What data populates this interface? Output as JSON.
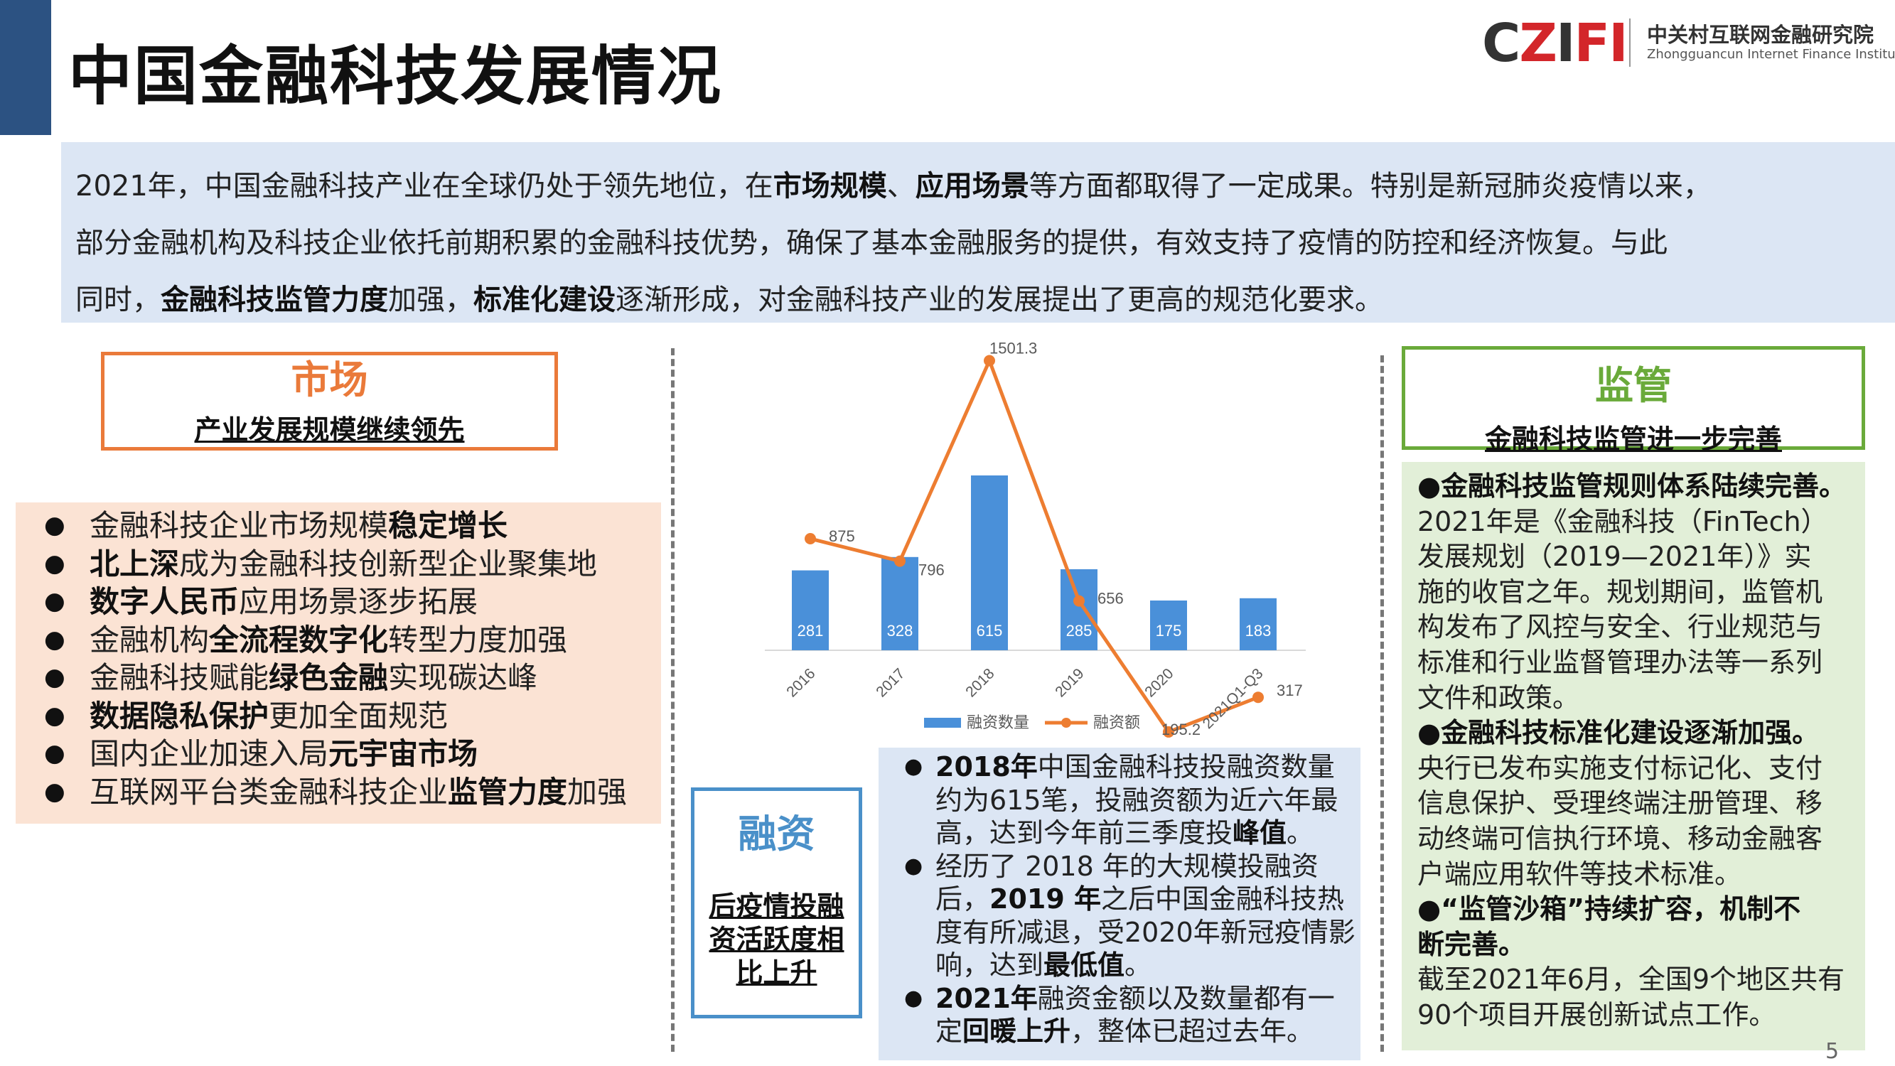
{
  "header": {
    "title": "中国金融科技发展情况",
    "logo_mark_dark1": "C",
    "logo_mark_red1": "Z",
    "logo_mark_dark2": "I",
    "logo_mark_red2": "FI",
    "logo_cn": "中关村互联网金融研究院",
    "logo_en": "Zhongguancun Internet Finance Institute"
  },
  "intro": {
    "l1a": "2021年，中国金融科技产业在全球仍处于领先地位，在",
    "l1b": "市场规模",
    "l1c": "、",
    "l1d": "应用场景",
    "l1e": "等方面都取得了一定成果。特别是新冠肺炎疫情以来，",
    "l2": "部分金融机构及科技企业依托前期积累的金融科技优势，确保了基本金融服务的提供，有效支持了疫情的防控和经济恢复。与此",
    "l3a": "同时，",
    "l3b": "金融科技监管力度",
    "l3c": "加强，",
    "l3d": "标准化建设",
    "l3e": "逐渐形成，对金融科技产业的发展提出了更高的规范化要求。"
  },
  "market": {
    "heading": "市场",
    "subheading": "产业发展规模继续领先",
    "items": [
      {
        "a": "金融科技企业市场规模",
        "b": "稳定增长",
        "c": ""
      },
      {
        "a": "",
        "b": "北上深",
        "c": "成为金融科技创新型企业聚集地"
      },
      {
        "a": "",
        "b": "数字人民币",
        "c": "应用场景逐步拓展"
      },
      {
        "a": "金融机构",
        "b": "全流程数字化",
        "c": "转型力度加强"
      },
      {
        "a": "金融科技赋能",
        "b": "绿色金融",
        "c": "实现碳达峰"
      },
      {
        "a": "",
        "b": "数据隐私保护",
        "c": "更加全面规范"
      },
      {
        "a": "国内企业加速入局",
        "b": "元宇宙市场",
        "c": ""
      },
      {
        "a": "互联网平台类金融科技企业",
        "b": "监管力度",
        "c": "加强"
      }
    ]
  },
  "financing": {
    "heading": "融资",
    "subheading_lines": [
      "后疫情投融",
      "资活跃度相",
      "比上升"
    ]
  },
  "fin_list": {
    "i1": {
      "a": "2018年",
      "b": "中国金融科技投融资数量约为615笔，投融资额为近六年最高，达到今年前三季度投",
      "c": "峰值",
      "d": "。"
    },
    "i2": {
      "a": "经历了 2018 年的大规模投融资后，",
      "b": "2019 年",
      "c": "之后中国金融科技热度有所减退，受2020年新冠疫情影响，达到",
      "d": "最低值",
      "e": "。"
    },
    "i3": {
      "a": "2021年",
      "b": "融资金额以及数量都有一定",
      "c": "回暖上升",
      "d": "，整体已超过去年。"
    }
  },
  "regulation": {
    "heading": "监管",
    "subheading": "金融科技监管进一步完善",
    "p1": "●金融科技监管规则体系陆续完善。",
    "p2": "2021年是《金融科技（FinTech）",
    "p3": "发展规划（2019—2021年）》实",
    "p4": "施的收官之年。规划期间，监管机",
    "p5": "构发布了风控与安全、行业规范与",
    "p6": "标准和行业监督管理办法等一系列",
    "p7": "文件和政策。",
    "p8": "●金融科技标准化建设逐渐加强。",
    "p9": "央行已发布实施支付标记化、支付",
    "p10": "信息保护、受理终端注册管理、移",
    "p11": "动终端可信执行环境、移动金融客",
    "p12": "户端应用软件等技术标准。",
    "p13": "●“监管沙箱”持续扩容，机制不",
    "p14": "断完善。",
    "p15": "截至2021年6月，全国9个地区共有",
    "p16": "90个项目开展创新试点工作。"
  },
  "page_number": "5",
  "chart_data": {
    "type": "bar",
    "categories": [
      "2016",
      "2017",
      "2018",
      "2019",
      "2020",
      "2021Q1-Q3"
    ],
    "series": [
      {
        "name": "融资数量",
        "kind": "bar",
        "color": "#4a90d9",
        "values": [
          281,
          328,
          615,
          285,
          175,
          183
        ]
      },
      {
        "name": "融资额",
        "kind": "line",
        "color": "#ed7d31",
        "values": [
          875,
          796,
          1501.3,
          656,
          195.2,
          317
        ]
      }
    ],
    "legend": "bottom",
    "grid": false
  }
}
